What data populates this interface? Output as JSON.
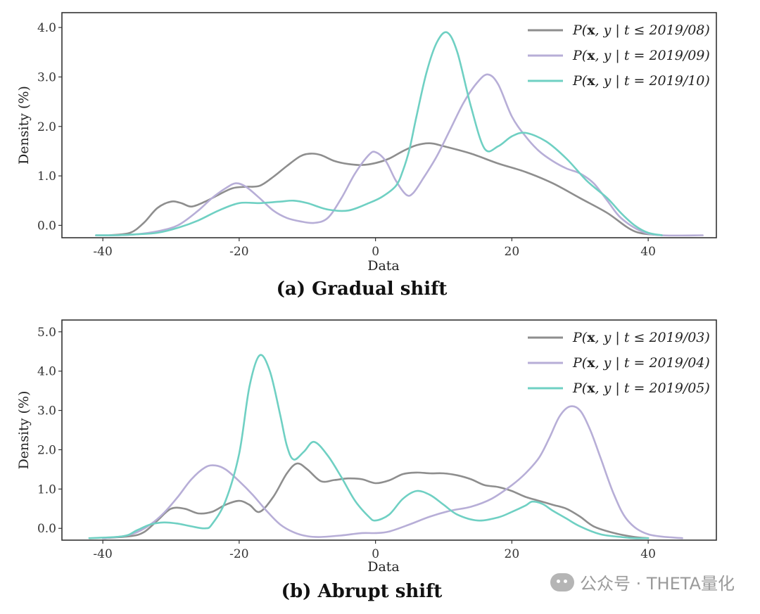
{
  "chart_data": [
    {
      "type": "line",
      "title": "",
      "caption": "(a) Gradual shift",
      "xlabel": "Data",
      "ylabel": "Density (%)",
      "xlim": [
        -46,
        50
      ],
      "ylim": [
        -0.25,
        4.3
      ],
      "xticks": [
        -40,
        -20,
        0,
        20,
        40
      ],
      "xtick_labels": [
        "-40",
        "-20",
        "0",
        "20",
        "40"
      ],
      "yticks": [
        0,
        1,
        2,
        3,
        4
      ],
      "ytick_labels": [
        "0.0",
        "1.0",
        "2.0",
        "3.0",
        "4.0"
      ],
      "legend_position": "top-right",
      "series": [
        {
          "name": "P(x, y | t ≤ 2019/08)",
          "legend_parts": [
            "P(",
            "x",
            ", y | t ≤ 2019/08)"
          ],
          "color": "#8e8e8e",
          "x": [
            -39,
            -36,
            -34,
            -32,
            -30,
            -28.5,
            -27,
            -25,
            -23,
            -21,
            -19,
            -17,
            -15,
            -13,
            -11,
            -9.5,
            -8,
            -6,
            -4,
            -2,
            0,
            2,
            4,
            6,
            8,
            10,
            14,
            18,
            22,
            26,
            30,
            34,
            38,
            42
          ],
          "y": [
            -0.2,
            -0.15,
            0.05,
            0.35,
            0.48,
            0.45,
            0.38,
            0.48,
            0.62,
            0.75,
            0.78,
            0.8,
            0.98,
            1.2,
            1.4,
            1.45,
            1.42,
            1.3,
            1.24,
            1.22,
            1.26,
            1.35,
            1.5,
            1.62,
            1.66,
            1.6,
            1.45,
            1.25,
            1.08,
            0.85,
            0.55,
            0.25,
            -0.12,
            -0.2
          ]
        },
        {
          "name": "P(x, y | t = 2019/09)",
          "legend_parts": [
            "P(",
            "x",
            ", y | t = 2019/09)"
          ],
          "color": "#b7aed7",
          "x": [
            -41,
            -38,
            -35,
            -32,
            -29,
            -26,
            -24,
            -22,
            -20.5,
            -19,
            -17,
            -15,
            -13,
            -11,
            -9,
            -7,
            -5,
            -3,
            -1,
            0,
            1.5,
            3,
            4.5,
            5.5,
            7,
            9,
            11,
            13,
            15,
            16.5,
            18,
            20,
            22,
            24,
            26,
            28,
            30,
            32,
            34,
            36,
            39,
            42,
            48
          ],
          "y": [
            -0.2,
            -0.2,
            -0.18,
            -0.12,
            0.0,
            0.3,
            0.55,
            0.75,
            0.85,
            0.78,
            0.55,
            0.3,
            0.15,
            0.08,
            0.05,
            0.15,
            0.55,
            1.05,
            1.42,
            1.48,
            1.3,
            0.9,
            0.62,
            0.65,
            0.95,
            1.4,
            1.95,
            2.5,
            2.9,
            3.05,
            2.85,
            2.2,
            1.8,
            1.5,
            1.3,
            1.15,
            1.05,
            0.85,
            0.5,
            0.15,
            -0.12,
            -0.2,
            -0.2
          ]
        },
        {
          "name": "P(x, y | t = 2019/10)",
          "legend_parts": [
            "P(",
            "x",
            ", y | t = 2019/10)"
          ],
          "color": "#6fd0c3",
          "x": [
            -41,
            -38,
            -35,
            -32,
            -29,
            -26,
            -23,
            -20,
            -17,
            -14,
            -12,
            -10,
            -7,
            -4,
            -1,
            1,
            3,
            4,
            5,
            6,
            7.5,
            9,
            10.5,
            12,
            14,
            16,
            18,
            20,
            22,
            25,
            28,
            31,
            34,
            36,
            38,
            40,
            42
          ],
          "y": [
            -0.2,
            -0.2,
            -0.18,
            -0.15,
            -0.05,
            0.1,
            0.3,
            0.45,
            0.45,
            0.48,
            0.5,
            0.45,
            0.32,
            0.3,
            0.45,
            0.58,
            0.8,
            1.1,
            1.55,
            2.2,
            3.1,
            3.7,
            3.9,
            3.5,
            2.4,
            1.55,
            1.6,
            1.8,
            1.87,
            1.7,
            1.35,
            0.9,
            0.55,
            0.25,
            0.0,
            -0.15,
            -0.2
          ]
        }
      ]
    },
    {
      "type": "line",
      "title": "",
      "caption": "(b) Abrupt shift",
      "xlabel": "Data",
      "ylabel": "Density (%)",
      "xlim": [
        -46,
        50
      ],
      "ylim": [
        -0.3,
        5.3
      ],
      "xticks": [
        -40,
        -20,
        0,
        20,
        40
      ],
      "xtick_labels": [
        "-40",
        "-20",
        "0",
        "20",
        "40"
      ],
      "yticks": [
        0,
        1,
        2,
        3,
        4,
        5
      ],
      "ytick_labels": [
        "0.0",
        "1.0",
        "2.0",
        "3.0",
        "4.0",
        "5.0"
      ],
      "legend_position": "top-right",
      "series": [
        {
          "name": "P(x, y | t ≤ 2019/03)",
          "legend_parts": [
            "P(",
            "x",
            ", y | t ≤ 2019/03)"
          ],
          "color": "#8e8e8e",
          "x": [
            -40,
            -36,
            -34,
            -32,
            -30,
            -28,
            -26,
            -24,
            -22,
            -20,
            -18.5,
            -17,
            -15,
            -13,
            -11.5,
            -10,
            -8,
            -6,
            -4,
            -2,
            0,
            2,
            4,
            6,
            8,
            10,
            12,
            14,
            16,
            18,
            20,
            22,
            24,
            26,
            28,
            30,
            32,
            35,
            38,
            40
          ],
          "y": [
            -0.25,
            -0.2,
            -0.1,
            0.2,
            0.5,
            0.5,
            0.38,
            0.42,
            0.6,
            0.7,
            0.6,
            0.42,
            0.8,
            1.4,
            1.65,
            1.5,
            1.2,
            1.23,
            1.27,
            1.25,
            1.15,
            1.22,
            1.38,
            1.42,
            1.4,
            1.4,
            1.35,
            1.25,
            1.1,
            1.05,
            0.95,
            0.8,
            0.7,
            0.6,
            0.5,
            0.3,
            0.05,
            -0.12,
            -0.22,
            -0.25
          ]
        },
        {
          "name": "P(x, y | t = 2019/04)",
          "legend_parts": [
            "P(",
            "x",
            ", y | t = 2019/04)"
          ],
          "color": "#b7aed7",
          "x": [
            -40,
            -37,
            -35,
            -33,
            -31,
            -29,
            -27,
            -25,
            -23.5,
            -22,
            -20,
            -18,
            -16,
            -14,
            -12,
            -10,
            -8,
            -5,
            -2,
            0,
            2,
            5,
            8,
            11,
            14,
            17,
            20,
            22,
            24,
            25.5,
            27,
            28.5,
            30,
            31.5,
            33,
            35,
            37,
            40,
            45
          ],
          "y": [
            -0.25,
            -0.2,
            -0.1,
            0.1,
            0.4,
            0.8,
            1.25,
            1.55,
            1.6,
            1.5,
            1.2,
            0.85,
            0.45,
            0.1,
            -0.1,
            -0.2,
            -0.22,
            -0.18,
            -0.12,
            -0.12,
            -0.08,
            0.1,
            0.3,
            0.45,
            0.55,
            0.75,
            1.1,
            1.4,
            1.8,
            2.3,
            2.85,
            3.1,
            3.0,
            2.5,
            1.8,
            0.85,
            0.2,
            -0.15,
            -0.25
          ]
        },
        {
          "name": "P(x, y | t = 2019/05)",
          "legend_parts": [
            "P(",
            "x",
            ", y | t = 2019/05)"
          ],
          "color": "#6fd0c3",
          "x": [
            -42,
            -37,
            -35,
            -33,
            -31,
            -29,
            -27,
            -25,
            -24,
            -22,
            -20,
            -18.5,
            -17,
            -15.5,
            -14,
            -13,
            -12,
            -10.5,
            -9,
            -7,
            -5,
            -3,
            -1,
            0,
            2,
            4,
            6,
            8,
            10,
            12,
            15,
            18,
            20,
            22,
            23,
            24.5,
            26,
            28,
            30,
            33,
            36,
            38,
            40
          ],
          "y": [
            -0.25,
            -0.2,
            -0.05,
            0.1,
            0.15,
            0.12,
            0.05,
            0.0,
            0.1,
            0.7,
            1.9,
            3.6,
            4.4,
            4.0,
            2.9,
            2.1,
            1.75,
            1.95,
            2.2,
            1.85,
            1.3,
            0.7,
            0.3,
            0.2,
            0.35,
            0.75,
            0.95,
            0.85,
            0.6,
            0.35,
            0.2,
            0.28,
            0.42,
            0.58,
            0.68,
            0.62,
            0.45,
            0.25,
            0.05,
            -0.15,
            -0.22,
            -0.25,
            -0.25
          ]
        }
      ]
    }
  ],
  "watermark": {
    "icon": "wechat-icon",
    "text": "公众号 · THETA量化"
  }
}
